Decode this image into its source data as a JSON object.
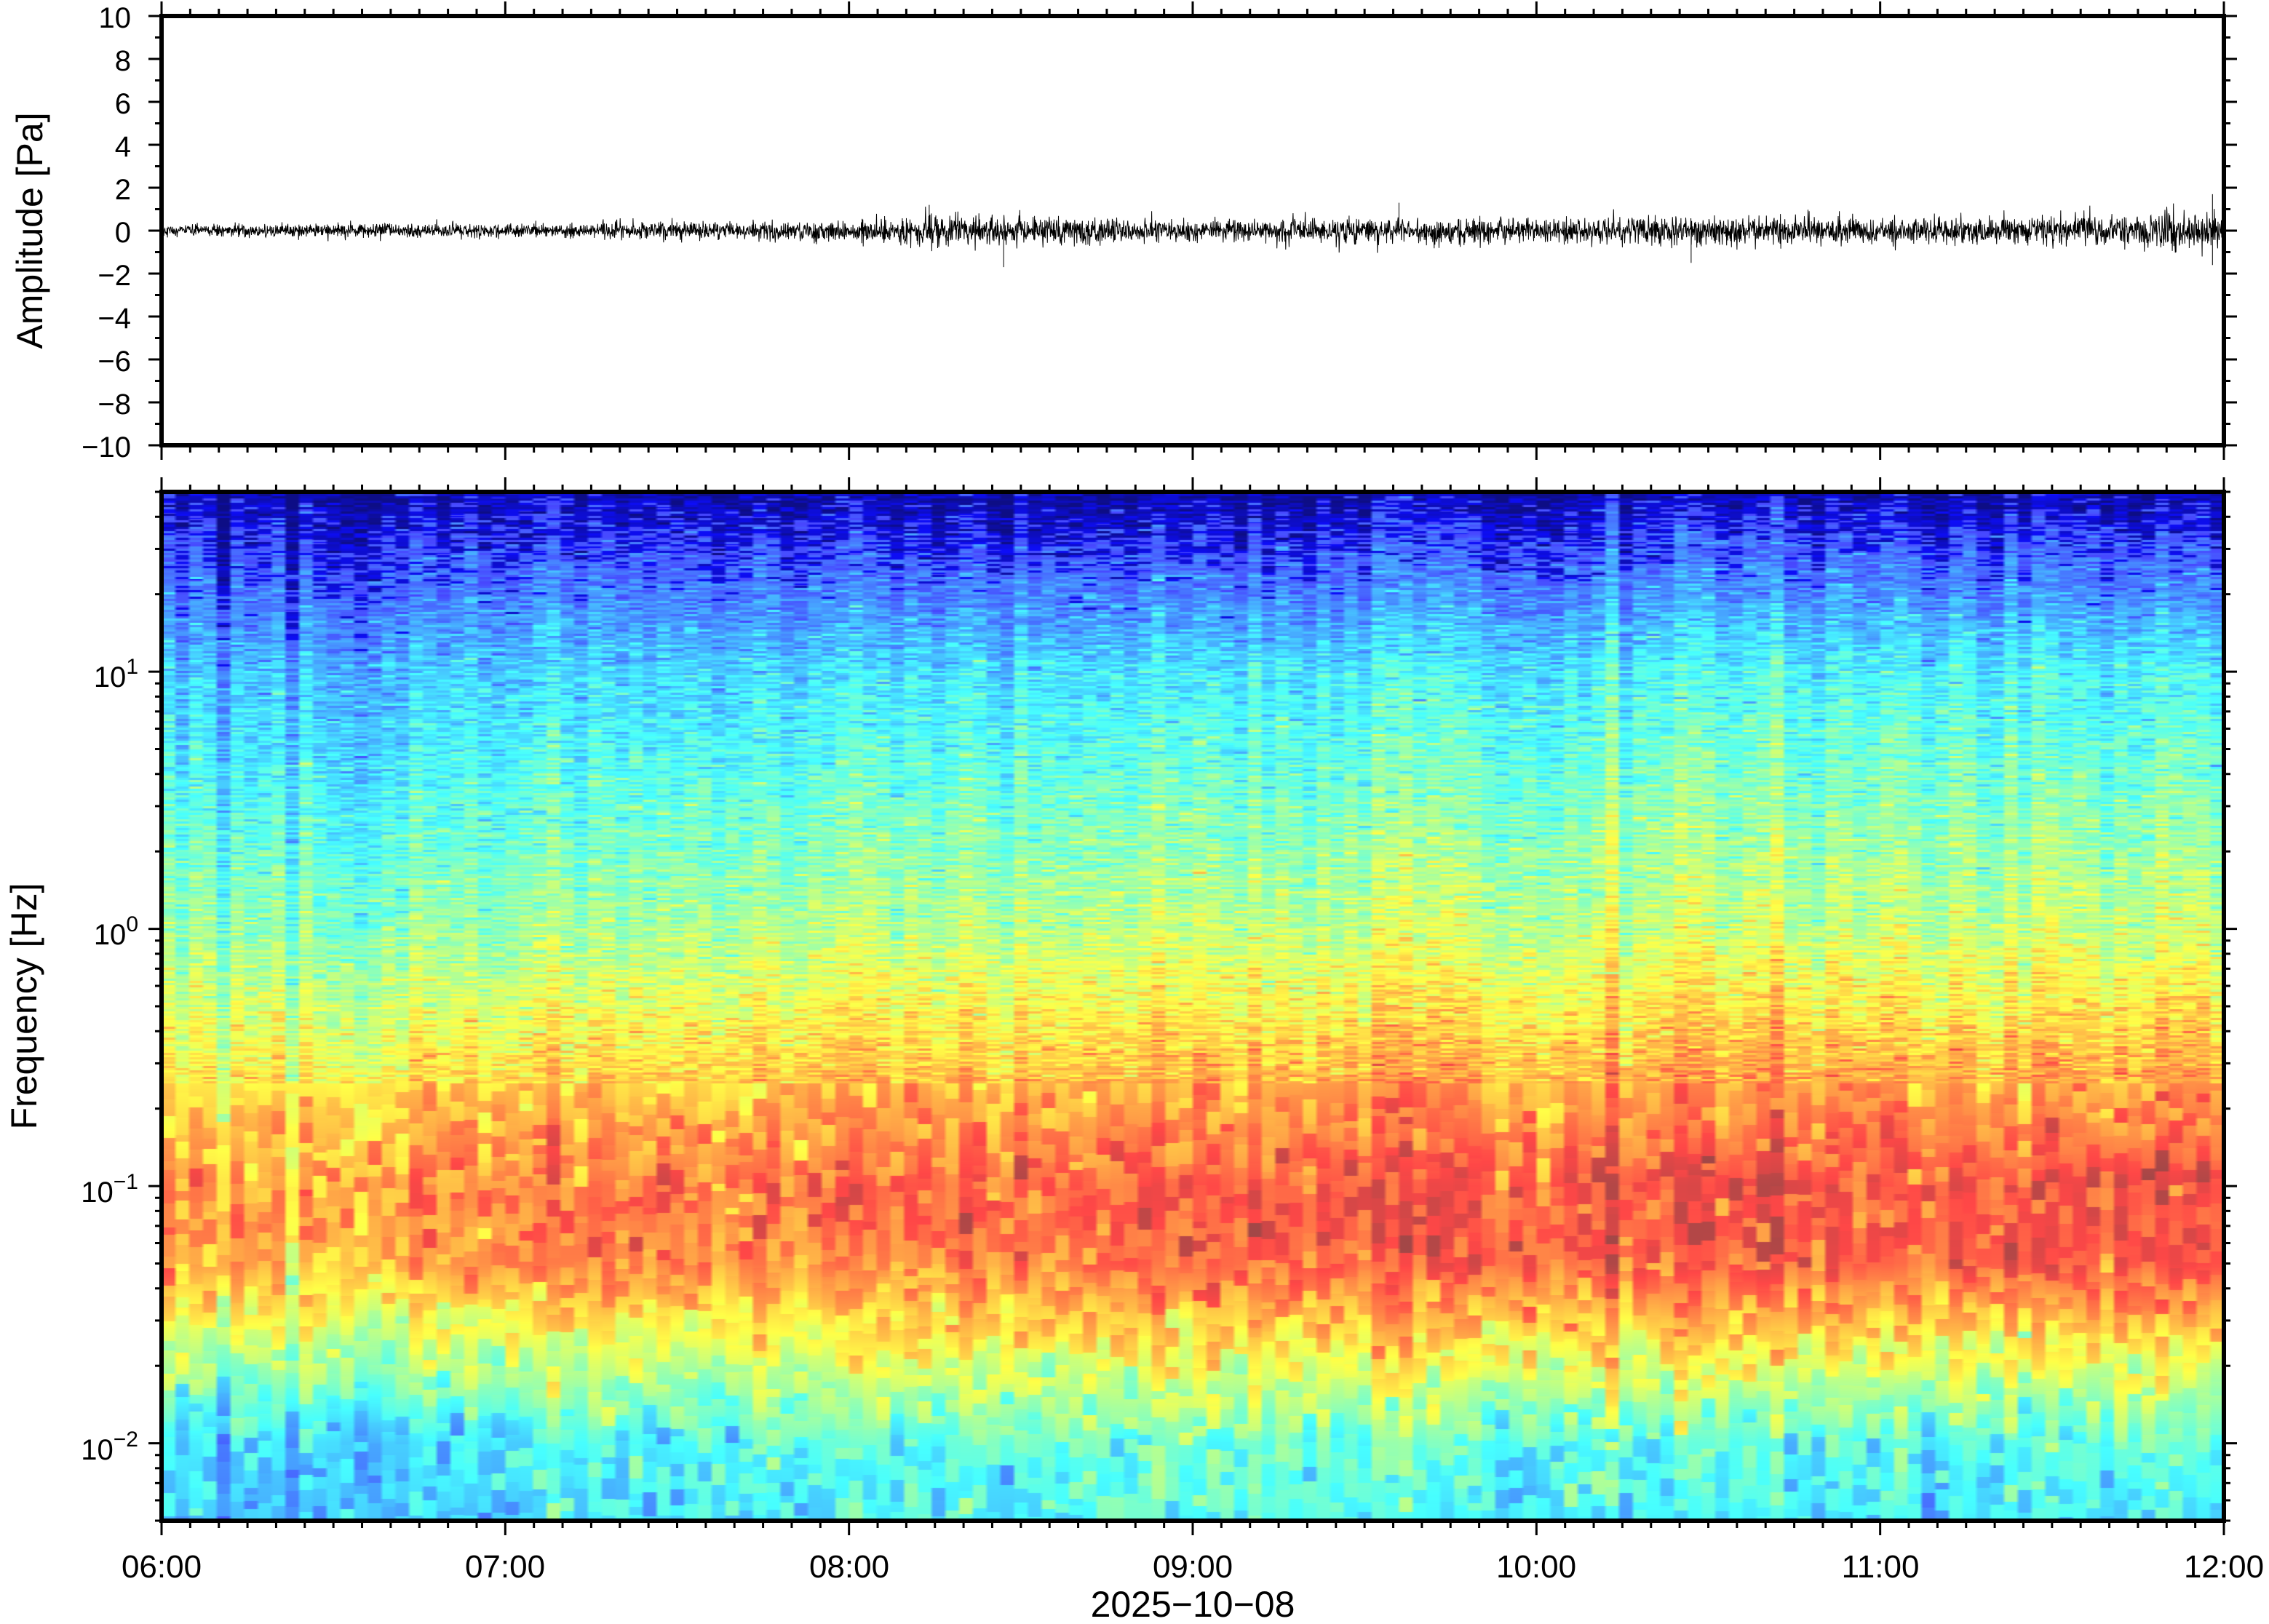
{
  "chart_data": [
    {
      "type": "line",
      "panel": "waveform",
      "ylabel": "Amplitude [Pa]",
      "ylim": [
        -10,
        10
      ],
      "yticks": [
        10,
        8,
        6,
        4,
        2,
        0,
        -2,
        -4,
        -6,
        -8,
        -10
      ],
      "ytick_labels": [
        "10",
        "8",
        "6",
        "4",
        "2",
        "0",
        "−2",
        "−4",
        "−6",
        "−8",
        "−10"
      ],
      "xlim": [
        "06:00",
        "12:00"
      ],
      "envelope": {
        "x": [
          "06:00",
          "06:30",
          "07:00",
          "07:30",
          "08:00",
          "08:15",
          "08:30",
          "09:00",
          "09:30",
          "10:00",
          "10:30",
          "11:00",
          "11:30",
          "12:00"
        ],
        "amplitude": [
          0.35,
          0.35,
          0.4,
          0.45,
          0.55,
          0.9,
          0.8,
          0.6,
          0.75,
          0.6,
          0.85,
          0.7,
          0.8,
          0.95
        ]
      },
      "peaks": [
        {
          "x": "08:14",
          "y": 1.2
        },
        {
          "x": "08:27",
          "y": -1.7
        },
        {
          "x": "09:36",
          "y": 1.3
        },
        {
          "x": "10:27",
          "y": -1.5
        },
        {
          "x": "11:58",
          "y": 1.7
        },
        {
          "x": "11:58",
          "y": -1.6
        }
      ]
    },
    {
      "type": "heatmap",
      "panel": "spectrogram",
      "ylabel": "Frequency [Hz]",
      "yscale": "log",
      "ylim": [
        0.005,
        50
      ],
      "yticks": [
        0.01,
        0.1,
        1,
        10
      ],
      "ytick_labels": [
        {
          "base": "10",
          "exp": "−2"
        },
        {
          "base": "10",
          "exp": "−1"
        },
        {
          "base": "10",
          "exp": "0"
        },
        {
          "base": "10",
          "exp": "1"
        }
      ],
      "colormap": "jet",
      "xlabel": "2025−10−08",
      "xlim": [
        "06:00",
        "12:00"
      ],
      "xticks": [
        "06:00",
        "07:00",
        "08:00",
        "09:00",
        "10:00",
        "11:00",
        "12:00"
      ],
      "power_levels_0to1": [
        {
          "x": "06:00",
          "level_001Hz": 0.32,
          "level_005Hz": 0.72,
          "level_01Hz": 0.74,
          "level_1Hz": 0.48,
          "level_10Hz": 0.28
        },
        {
          "x": "07:00",
          "level_001Hz": 0.34,
          "level_005Hz": 0.76,
          "level_01Hz": 0.78,
          "level_1Hz": 0.48,
          "level_10Hz": 0.3
        },
        {
          "x": "08:00",
          "level_001Hz": 0.42,
          "level_005Hz": 0.8,
          "level_01Hz": 0.84,
          "level_1Hz": 0.54,
          "level_10Hz": 0.34
        },
        {
          "x": "09:00",
          "level_001Hz": 0.46,
          "level_005Hz": 0.84,
          "level_01Hz": 0.86,
          "level_1Hz": 0.56,
          "level_10Hz": 0.36
        },
        {
          "x": "10:00",
          "level_001Hz": 0.4,
          "level_005Hz": 0.85,
          "level_01Hz": 0.86,
          "level_1Hz": 0.55,
          "level_10Hz": 0.36
        },
        {
          "x": "11:00",
          "level_001Hz": 0.38,
          "level_005Hz": 0.84,
          "level_01Hz": 0.86,
          "level_1Hz": 0.55,
          "level_10Hz": 0.37
        },
        {
          "x": "12:00",
          "level_001Hz": 0.42,
          "level_005Hz": 0.86,
          "level_01Hz": 0.88,
          "level_1Hz": 0.56,
          "level_10Hz": 0.37
        }
      ]
    }
  ]
}
